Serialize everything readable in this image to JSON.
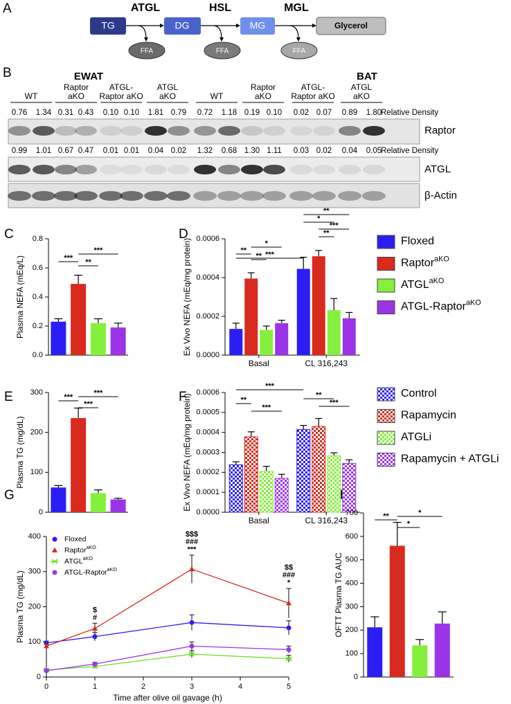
{
  "panel_labels": [
    "A",
    "B",
    "C",
    "D",
    "E",
    "F",
    "G",
    "H"
  ],
  "pathway": {
    "nodes": [
      "TG",
      "DG",
      "MG",
      "Glycerol"
    ],
    "enzymes": [
      "ATGL",
      "HSL",
      "MGL"
    ],
    "products": [
      "FFA",
      "FFA",
      "FFA"
    ]
  },
  "blot": {
    "tissues": [
      "EWAT",
      "BAT"
    ],
    "groups": [
      [
        "WT"
      ],
      [
        "Raptor",
        "aKO"
      ],
      [
        "ATGL-",
        "Raptor aKO"
      ],
      [
        "ATGL",
        "aKO"
      ],
      [
        "WT"
      ],
      [
        "Raptor",
        "aKO"
      ],
      [
        "ATGL-",
        "Raptor aKO"
      ],
      [
        "ATGL",
        "aKO"
      ]
    ],
    "density_label": "Relative Density",
    "raptor_density": [
      "0.76",
      "1.34",
      "0.31",
      "0.43",
      "0.10",
      "0.10",
      "1.81",
      "0.79",
      "0.72",
      "1.18",
      "0.19",
      "0.10",
      "0.02",
      "0.07",
      "0.89",
      "1.80"
    ],
    "atgl_density": [
      "0.99",
      "1.01",
      "0.67",
      "0.47",
      "0.01",
      "0.01",
      "0.04",
      "0.02",
      "1.32",
      "0.68",
      "1.30",
      "1.11",
      "0.03",
      "0.02",
      "0.04",
      "0.05"
    ],
    "bands": [
      "Raptor",
      "ATGL",
      "β-Actin"
    ]
  },
  "chart_data": [
    {
      "type": "bar",
      "ylabel": "Plasma NEFA (mEq/L)",
      "values": [
        0.23,
        0.49,
        0.22,
        0.19
      ],
      "errors": [
        0.02,
        0.06,
        0.03,
        0.03
      ],
      "colors": [
        "#2b1ef5",
        "#d92a1e",
        "#84f03c",
        "#9b34e6"
      ],
      "ylim": [
        0,
        0.8
      ],
      "yticks": [
        {
          "value": 0,
          "label": "0.0"
        },
        0.2,
        0.4,
        0.6,
        0.8
      ],
      "annotations": [
        "***",
        "***",
        "**"
      ]
    },
    {
      "type": "bar",
      "ylabel": "Ex Vivo NEFA (mEq/mg protein)",
      "categories": [
        "Basal",
        "CL 316,243"
      ],
      "series": [
        {
          "name": "Floxed",
          "color": "#2b1ef5",
          "values": [
            0.000135,
            0.000445
          ],
          "errors": [
            3e-05,
            6e-05
          ]
        },
        {
          "name": "Raptor",
          "name_sup": "aKO",
          "color": "#d92a1e",
          "values": [
            0.000395,
            0.00051
          ],
          "errors": [
            3e-05,
            3e-05
          ]
        },
        {
          "name": "ATGL",
          "name_sup": "aKO",
          "color": "#84f03c",
          "values": [
            0.00013,
            0.000232
          ],
          "errors": [
            2e-05,
            6e-05
          ]
        },
        {
          "name": "ATGL-Raptor",
          "name_sup": "aKO",
          "color": "#9b34e6",
          "values": [
            0.000165,
            0.00019
          ],
          "errors": [
            1.5e-05,
            3e-05
          ]
        }
      ],
      "ylim": [
        0,
        0.0006
      ],
      "yticks": [
        {
          "value": 0,
          "label": "0.0000"
        },
        0.0002,
        0.0004,
        0.0006
      ],
      "legend": "right",
      "annotations": [
        "***",
        "**",
        "*",
        "**",
        "**",
        "*",
        "***",
        "**"
      ]
    },
    {
      "type": "bar",
      "ylabel": "Plasma TG (mg/dL)",
      "values": [
        62,
        236,
        48,
        32
      ],
      "errors": [
        5,
        25,
        8,
        3
      ],
      "colors": [
        "#2b1ef5",
        "#d92a1e",
        "#84f03c",
        "#9b34e6"
      ],
      "ylim": [
        0,
        300
      ],
      "yticks": [
        0,
        100,
        200,
        300
      ],
      "annotations": [
        "***",
        "***",
        "***"
      ]
    },
    {
      "type": "bar",
      "ylabel": "Ex Vivo NEFA (mEq/mg protein)",
      "categories": [
        "Basal",
        "CL 316,243"
      ],
      "series": [
        {
          "name": "Control",
          "color": "#2b1ef5",
          "pattern": "checkered",
          "values": [
            0.000238,
            0.000415
          ],
          "errors": [
            1.5e-05,
            2e-05
          ]
        },
        {
          "name": "Rapamycin",
          "color": "#d92a1e",
          "pattern": "checkered",
          "values": [
            0.000378,
            0.00043
          ],
          "errors": [
            2.5e-05,
            4e-05
          ]
        },
        {
          "name": "ATGLi",
          "color": "#84f03c",
          "pattern": "checkered",
          "values": [
            0.000205,
            0.000283
          ],
          "errors": [
            2.5e-05,
            1.5e-05
          ]
        },
        {
          "name": "Rapamycin + ATGLi",
          "color": "#9b34e6",
          "pattern": "checkered",
          "values": [
            0.00017,
            0.000245
          ],
          "errors": [
            2e-05,
            1.8e-05
          ]
        }
      ],
      "ylim": [
        0,
        0.0006
      ],
      "yticks": [
        {
          "value": 0,
          "label": "0.0000"
        },
        0.0001,
        0.0002,
        0.0003,
        0.0004,
        0.0005,
        0.0006
      ],
      "legend": "right",
      "annotations": [
        "***",
        "**",
        "***",
        "**",
        "***"
      ]
    },
    {
      "type": "line",
      "ylabel": "Plasma TG (mg/dL)",
      "xlabel": "Time after olive oil gavage (h)",
      "x": [
        0,
        1,
        3,
        5
      ],
      "series": [
        {
          "name": "Floxed",
          "color": "#2b1ef5",
          "marker": "circle",
          "values": [
            97,
            115,
            155,
            140
          ],
          "errors": [
            5,
            12,
            22,
            20
          ]
        },
        {
          "name": "Raptor",
          "name_sup": "aKO",
          "color": "#d92a1e",
          "marker": "triangle",
          "values": [
            88,
            138,
            307,
            210
          ],
          "errors": [
            5,
            15,
            40,
            42
          ]
        },
        {
          "name": "ATGL",
          "name_sup": "aKO",
          "color": "#6fe02a",
          "marker": "x",
          "values": [
            20,
            30,
            65,
            52
          ],
          "errors": [
            3,
            5,
            10,
            10
          ]
        },
        {
          "name": "ATGL-Raptor",
          "name_sup": "aKO",
          "color": "#9b34e6",
          "marker": "circle",
          "values": [
            18,
            37,
            88,
            78
          ],
          "errors": [
            3,
            5,
            12,
            10
          ]
        }
      ],
      "xlim": [
        0,
        5
      ],
      "xticks": [
        0,
        1,
        2,
        3,
        4,
        5
      ],
      "ylim": [
        0,
        400
      ],
      "yticks": [
        0,
        100,
        200,
        300,
        400
      ],
      "legend": "upper left",
      "annotations": [
        {
          "x": 1,
          "text": [
            "#",
            "$"
          ]
        },
        {
          "x": 3,
          "text": [
            "***",
            "###",
            "$$$"
          ]
        },
        {
          "x": 5,
          "text": [
            "*",
            "###",
            "$$"
          ]
        }
      ]
    },
    {
      "type": "bar",
      "ylabel": "OFTT Plasma TG AUC",
      "values": [
        212,
        560,
        135,
        228
      ],
      "errors": [
        45,
        100,
        25,
        50
      ],
      "colors": [
        "#2b1ef5",
        "#d92a1e",
        "#84f03c",
        "#9b34e6"
      ],
      "ylim": [
        0,
        700
      ],
      "yticks": [
        0,
        100,
        200,
        300,
        400,
        500,
        600,
        700
      ],
      "annotations": [
        "**",
        "*",
        "*"
      ]
    }
  ]
}
